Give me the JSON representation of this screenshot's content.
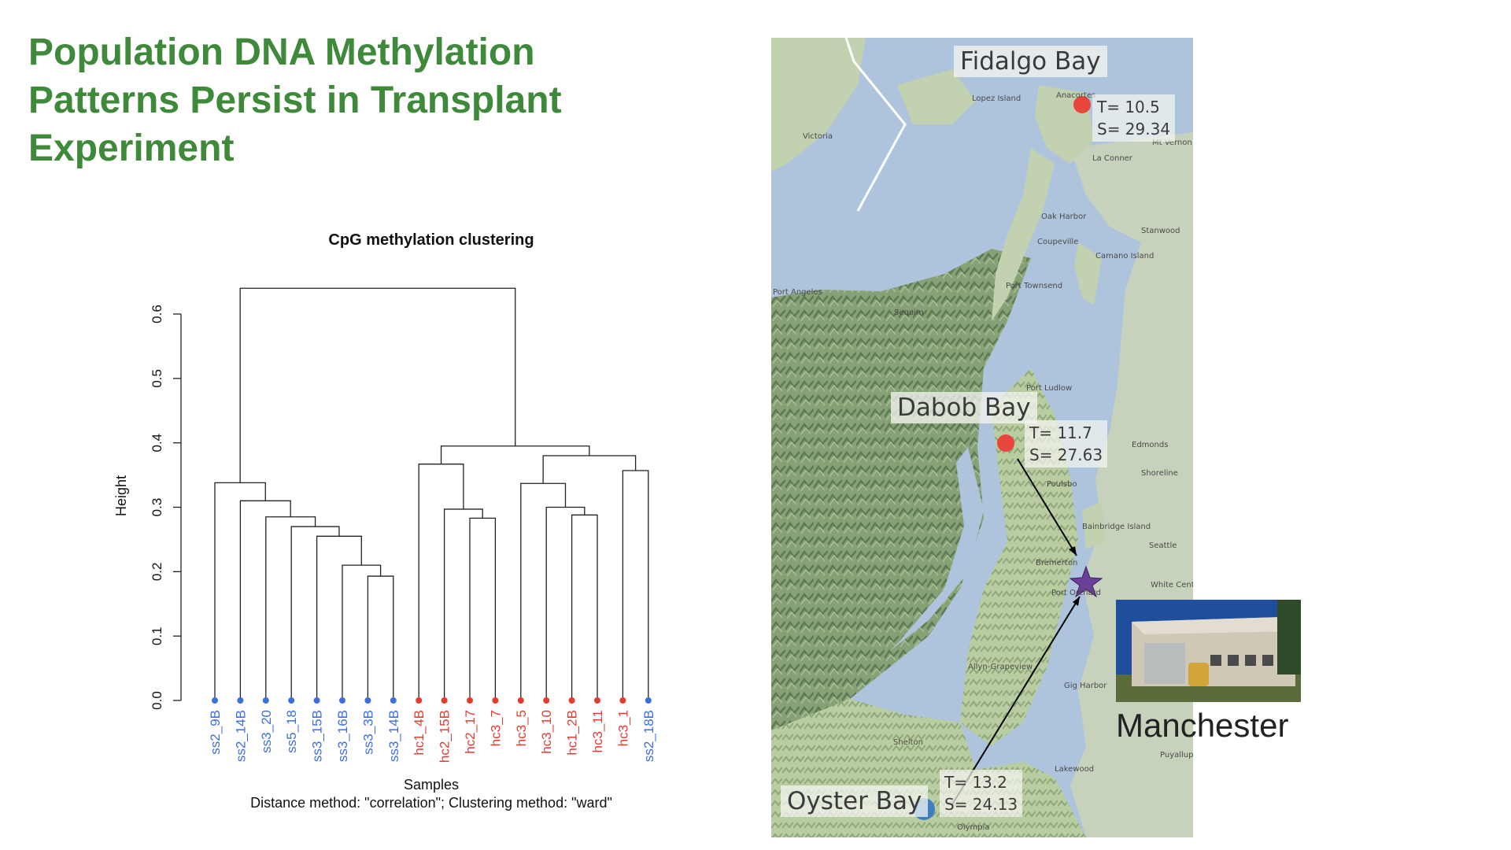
{
  "slide": {
    "title_lines": [
      "Population DNA Methylation",
      "Patterns Persist in Transplant",
      "Experiment"
    ]
  },
  "chart_data": {
    "type": "dendrogram",
    "title": "CpG methylation clustering",
    "xlabel": "Samples",
    "ylabel": "Height",
    "subtitle": "Distance method: \"correlation\"; Clustering method: \"ward\"",
    "ylim": [
      0,
      0.6
    ],
    "yticks": [
      "0.0",
      "0.1",
      "0.2",
      "0.3",
      "0.4",
      "0.5",
      "0.6"
    ],
    "leaves": [
      {
        "label": "ss2_9B",
        "color": "#3b6fe0"
      },
      {
        "label": "ss2_14B",
        "color": "#3b6fe0"
      },
      {
        "label": "ss3_20",
        "color": "#3b6fe0"
      },
      {
        "label": "ss5_18",
        "color": "#3b6fe0"
      },
      {
        "label": "ss3_15B",
        "color": "#3b6fe0"
      },
      {
        "label": "ss3_16B",
        "color": "#3b6fe0"
      },
      {
        "label": "ss3_3B",
        "color": "#3b6fe0"
      },
      {
        "label": "ss3_14B",
        "color": "#3b6fe0"
      },
      {
        "label": "hc1_4B",
        "color": "#e03c31"
      },
      {
        "label": "hc2_15B",
        "color": "#e03c31"
      },
      {
        "label": "hc2_17",
        "color": "#e03c31"
      },
      {
        "label": "hc3_7",
        "color": "#e03c31"
      },
      {
        "label": "hc3_5",
        "color": "#e03c31"
      },
      {
        "label": "hc3_10",
        "color": "#e03c31"
      },
      {
        "label": "hc1_2B",
        "color": "#e03c31"
      },
      {
        "label": "hc3_11",
        "color": "#e03c31"
      },
      {
        "label": "hc3_1",
        "color": "#e03c31"
      },
      {
        "label": "ss2_18B",
        "color": "#3b6fe0"
      }
    ],
    "merges": [
      {
        "a": "L6",
        "b": "L7",
        "h": 0.193
      },
      {
        "a": "L5",
        "b": "M0",
        "h": 0.21
      },
      {
        "a": "L4",
        "b": "M1",
        "h": 0.255
      },
      {
        "a": "L3",
        "b": "M2",
        "h": 0.27
      },
      {
        "a": "L2",
        "b": "M3",
        "h": 0.285
      },
      {
        "a": "L1",
        "b": "M4",
        "h": 0.31
      },
      {
        "a": "L0",
        "b": "M5",
        "h": 0.338
      },
      {
        "a": "L10",
        "b": "L11",
        "h": 0.283
      },
      {
        "a": "L9",
        "b": "M7",
        "h": 0.297
      },
      {
        "a": "L8",
        "b": "M8",
        "h": 0.367
      },
      {
        "a": "L14",
        "b": "L15",
        "h": 0.288
      },
      {
        "a": "L13",
        "b": "M10",
        "h": 0.3
      },
      {
        "a": "L12",
        "b": "M11",
        "h": 0.337
      },
      {
        "a": "L16",
        "b": "L17",
        "h": 0.357
      },
      {
        "a": "M12",
        "b": "M13",
        "h": 0.38
      },
      {
        "a": "M9",
        "b": "M14",
        "h": 0.395
      },
      {
        "a": "M6",
        "b": "M15",
        "h": 0.64
      }
    ]
  },
  "map": {
    "title_labels": {
      "fidalgo": "Fidalgo Bay",
      "dabob": "Dabob Bay",
      "oyster": "Oyster Bay"
    },
    "stats": {
      "fidalgo": {
        "t": "T= 10.5",
        "s": "S= 29.34"
      },
      "dabob": {
        "t": "T= 11.7",
        "s": "S= 27.63"
      },
      "oyster": {
        "t": "T= 13.2",
        "s": "S= 24.13"
      }
    },
    "site_colors": {
      "fidalgo": "#e8453c",
      "dabob": "#e8453c",
      "oyster": "#3d7fc0",
      "destination": "#6b3f99"
    },
    "places": {
      "victoria": "Victoria",
      "lopez": "Lopez Island",
      "anacortes": "Anacortes",
      "mtvernon": "Mt Vernon",
      "laconner": "La Conner",
      "oakharbor": "Oak Harbor",
      "coupeville": "Coupeville",
      "stanwood": "Stanwood",
      "camano": "Camano Island",
      "portangeles": "Port Angeles",
      "sequim": "Sequim",
      "porttownsend": "Port Townsend",
      "portludlow": "Port Ludlow",
      "edmonds": "Edmonds",
      "shoreline": "Shoreline",
      "seattle": "Seattle",
      "bainbridge": "Bainbridge Island",
      "bremerton": "Bremerton",
      "portorchard": "Port Orchard",
      "allyn": "Allyn-Grapeview",
      "gigharbor": "Gig Harbor",
      "shelton": "Shelton",
      "lakewood": "Lakewood",
      "olympia": "Olympia",
      "puyallup": "Puyallup",
      "poulsbo": "Poulsbo",
      "whitecenter": "White Center"
    },
    "destination_label": "Manchester"
  }
}
